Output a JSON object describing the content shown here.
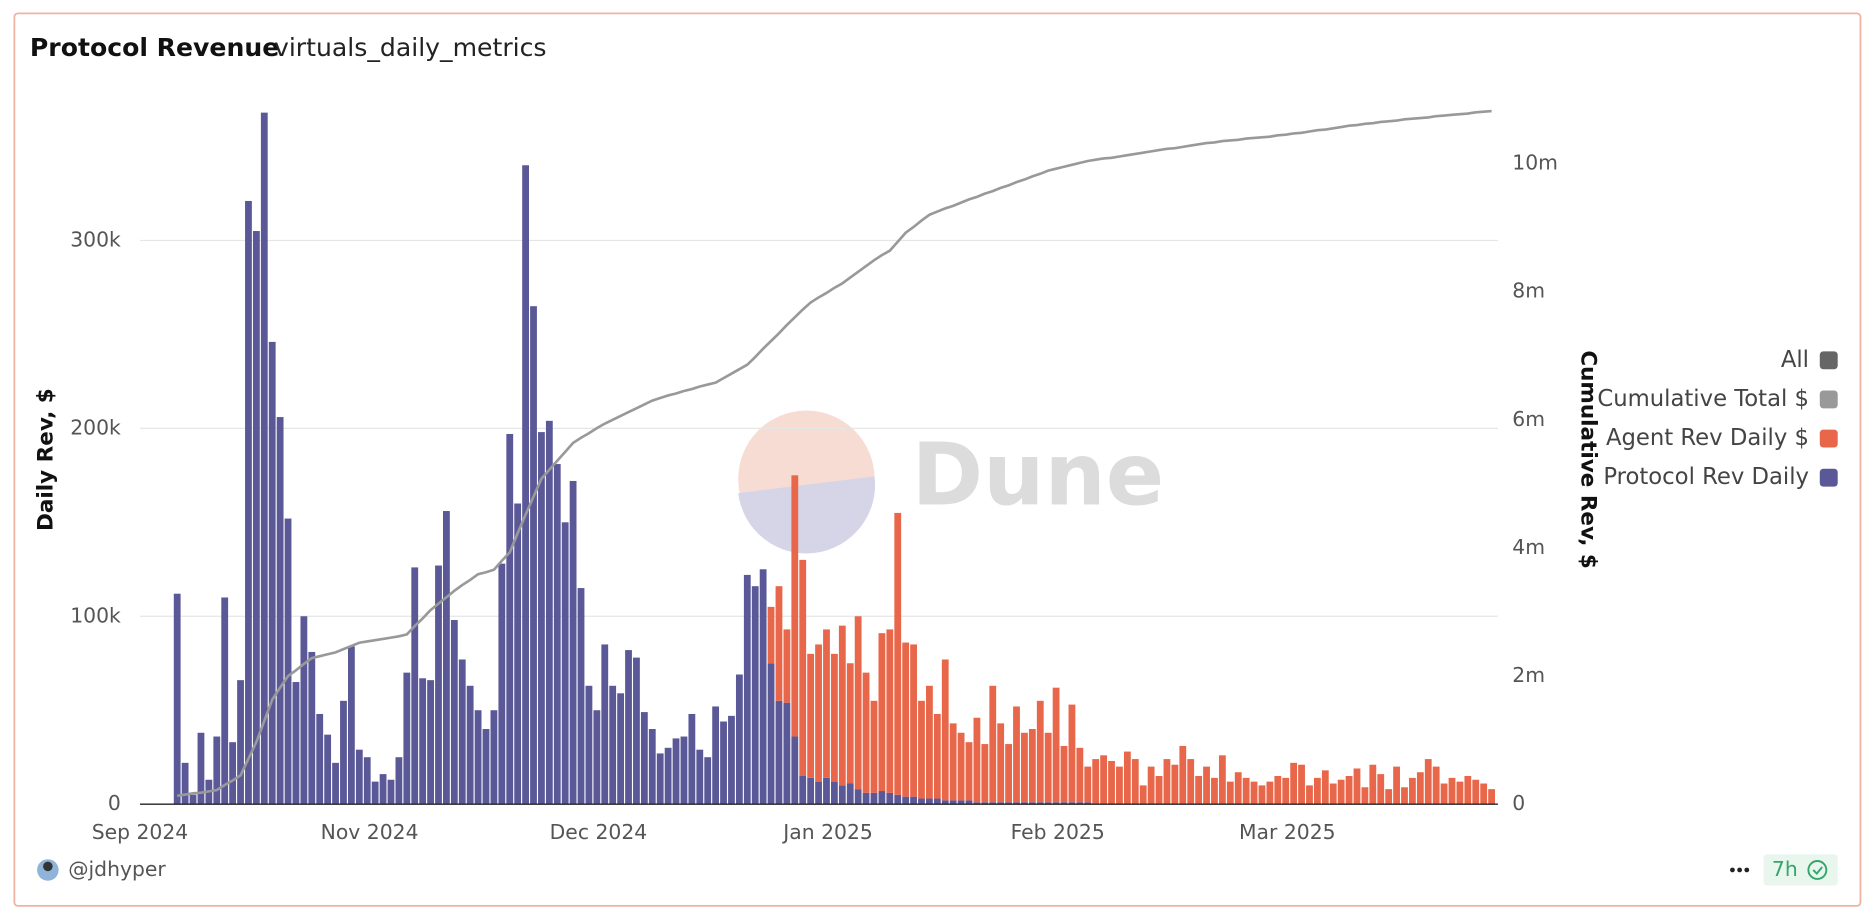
{
  "header": {
    "title": "Protocol Revenue",
    "subtitle": "virtuals_daily_metrics"
  },
  "footer": {
    "author": "@jdhyper",
    "age": "7h"
  },
  "watermark": "Dune",
  "chart_data": {
    "type": "bar",
    "stacked": true,
    "ylabel": "Daily Rev, $",
    "y2label": "Cumulative Rev, $",
    "xlim": [
      -4.7,
      166.8
    ],
    "xticks": [
      {
        "value": -4.7,
        "label": "Sep 2024"
      },
      {
        "value": 24.3,
        "label": "Nov 2024"
      },
      {
        "value": 53.2,
        "label": "Dec 2024"
      },
      {
        "value": 82.2,
        "label": "Jan 2025"
      },
      {
        "value": 111.2,
        "label": "Feb 2025"
      },
      {
        "value": 140.2,
        "label": "Mar 2025"
      }
    ],
    "ylim": [
      0,
      375000
    ],
    "yticks": [
      0,
      {
        "value": 100000,
        "label": "100k"
      },
      {
        "value": 200000,
        "label": "200k"
      },
      {
        "value": 300000,
        "label": "300k"
      }
    ],
    "y2lim": [
      0,
      11000000
    ],
    "y2ticks": [
      0,
      {
        "value": 2000000,
        "label": "2m"
      },
      {
        "value": 4000000,
        "label": "4m"
      },
      {
        "value": 6000000,
        "label": "6m"
      },
      {
        "value": 8000000,
        "label": "8m"
      },
      {
        "value": 10000000,
        "label": "10m"
      }
    ],
    "grid": true,
    "legend": "right",
    "legend_all": {
      "label": "All",
      "color": "#666666"
    },
    "series": [
      {
        "name": "Cumulative Total $",
        "color": "#999999",
        "type": "line",
        "axis": "y2",
        "values": [
          130000,
          150000,
          170000,
          180000,
          200000,
          220000,
          300000,
          370000,
          450000,
          710000,
          970000,
          1300000,
          1630000,
          1820000,
          2000000,
          2090000,
          2190000,
          2280000,
          2310000,
          2340000,
          2370000,
          2420000,
          2470000,
          2520000,
          2540000,
          2560000,
          2580000,
          2600000,
          2620000,
          2650000,
          2780000,
          2900000,
          3030000,
          3130000,
          3230000,
          3330000,
          3420000,
          3500000,
          3590000,
          3620000,
          3660000,
          3800000,
          3930000,
          4230000,
          4520000,
          4800000,
          5080000,
          5220000,
          5360000,
          5500000,
          5640000,
          5720000,
          5790000,
          5870000,
          5940000,
          6000000,
          6060000,
          6120000,
          6180000,
          6240000,
          6300000,
          6340000,
          6380000,
          6410000,
          6450000,
          6480000,
          6520000,
          6550000,
          6580000,
          6650000,
          6720000,
          6790000,
          6860000,
          6980000,
          7110000,
          7230000,
          7350000,
          7480000,
          7600000,
          7720000,
          7830000,
          7910000,
          7980000,
          8060000,
          8130000,
          8220000,
          8310000,
          8400000,
          8490000,
          8570000,
          8640000,
          8780000,
          8920000,
          9010000,
          9110000,
          9200000,
          9250000,
          9300000,
          9340000,
          9390000,
          9440000,
          9480000,
          9530000,
          9570000,
          9620000,
          9660000,
          9710000,
          9750000,
          9800000,
          9840000,
          9890000,
          9920000,
          9950000,
          9980000,
          10010000,
          10040000,
          10060000,
          10080000,
          10090000,
          10110000,
          10130000,
          10150000,
          10170000,
          10190000,
          10210000,
          10230000,
          10240000,
          10260000,
          10280000,
          10300000,
          10320000,
          10330000,
          10350000,
          10360000,
          10370000,
          10390000,
          10400000,
          10410000,
          10420000,
          10440000,
          10450000,
          10470000,
          10480000,
          10500000,
          10520000,
          10530000,
          10550000,
          10570000,
          10590000,
          10600000,
          10620000,
          10630000,
          10650000,
          10660000,
          10670000,
          10690000,
          10700000,
          10710000,
          10720000,
          10740000,
          10750000,
          10760000,
          10770000,
          10780000,
          10800000,
          10810000,
          10820000
        ]
      },
      {
        "name": "Agent Rev Daily $",
        "color": "#e8674a",
        "values": [
          null,
          null,
          null,
          null,
          null,
          null,
          null,
          null,
          null,
          null,
          null,
          null,
          null,
          null,
          null,
          null,
          null,
          null,
          null,
          null,
          null,
          null,
          null,
          null,
          null,
          null,
          null,
          null,
          null,
          null,
          null,
          null,
          null,
          null,
          null,
          null,
          null,
          null,
          null,
          null,
          null,
          null,
          null,
          null,
          null,
          null,
          null,
          null,
          null,
          null,
          null,
          null,
          null,
          null,
          null,
          null,
          null,
          null,
          null,
          null,
          null,
          null,
          null,
          null,
          null,
          null,
          null,
          null,
          null,
          null,
          null,
          null,
          null,
          null,
          null,
          30000,
          61000,
          39000,
          139000,
          115000,
          66000,
          73000,
          79000,
          68000,
          85000,
          64000,
          92000,
          64000,
          49000,
          84000,
          87000,
          150000,
          82000,
          81000,
          52000,
          60000,
          45000,
          75000,
          41000,
          36000,
          31000,
          45000,
          31000,
          62000,
          42000,
          31000,
          51000,
          37000,
          39000,
          54000,
          37000,
          61000,
          30000,
          52000,
          29000,
          19000,
          24000,
          26000,
          23000,
          20000,
          28000,
          24000,
          10000,
          20000,
          15000,
          24000,
          21000,
          31000,
          24000,
          15000,
          20000,
          14000,
          26000,
          12000,
          17000,
          14000,
          12000,
          10000,
          12000,
          15000,
          14000,
          22000,
          21000,
          10000,
          14000,
          18000,
          11000,
          13000,
          15000,
          19000,
          9000,
          21000,
          16000,
          8000,
          20000,
          9000,
          14000,
          17000,
          24000,
          20000,
          11000,
          14000,
          12000,
          15000,
          13000,
          11000,
          8000
        ]
      },
      {
        "name": "Protocol Rev Daily",
        "color": "#5b5898",
        "values": [
          112000,
          22000,
          5000,
          38000,
          13000,
          36000,
          110000,
          33000,
          66000,
          321000,
          305000,
          368000,
          246000,
          206000,
          152000,
          65000,
          100000,
          81000,
          48000,
          37000,
          22000,
          55000,
          84000,
          29000,
          25000,
          12000,
          16000,
          13000,
          25000,
          70000,
          126000,
          67000,
          66000,
          127000,
          156000,
          98000,
          77000,
          63000,
          50000,
          40000,
          50000,
          128000,
          197000,
          160000,
          340000,
          265000,
          198000,
          204000,
          181000,
          150000,
          172000,
          115000,
          63000,
          50000,
          85000,
          63000,
          59000,
          82000,
          78000,
          49000,
          40000,
          27000,
          30000,
          35000,
          36000,
          48000,
          29000,
          25000,
          52000,
          44000,
          47000,
          69000,
          122000,
          116000,
          125000,
          75000,
          55000,
          54000,
          36000,
          15000,
          14000,
          12000,
          14000,
          12000,
          10000,
          11000,
          8000,
          6000,
          6000,
          7000,
          6000,
          5000,
          4000,
          4000,
          3000,
          3000,
          3000,
          2000,
          2000,
          2000,
          2000,
          1000,
          1000,
          1000,
          1000,
          1000,
          1000,
          1000,
          1000,
          1000,
          1000,
          1000,
          1000,
          1000,
          1000,
          1000,
          0,
          0,
          0,
          0,
          0,
          0,
          0,
          0,
          0,
          0,
          0,
          0,
          0,
          0,
          0,
          0,
          0,
          0,
          0,
          0,
          0,
          0,
          0,
          0,
          0,
          0,
          0,
          0,
          0,
          0,
          0,
          0,
          0,
          0,
          0,
          0,
          0,
          0,
          0,
          0,
          0,
          0,
          0,
          0,
          0,
          0,
          0,
          0,
          0,
          0,
          0
        ]
      }
    ]
  }
}
